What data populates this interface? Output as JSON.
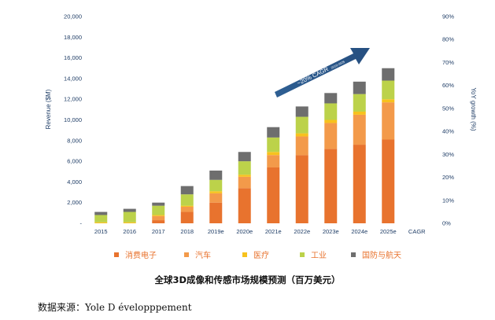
{
  "chart_data": {
    "type": "bar",
    "stacked": true,
    "categories": [
      "2015",
      "2016",
      "2017",
      "2018",
      "2019e",
      "2020e",
      "2021e",
      "2022e",
      "2023e",
      "2024e",
      "2025e",
      "CAGR"
    ],
    "series": [
      {
        "name": "消费电子",
        "color": "#e8732e",
        "values": [
          0,
          0,
          300,
          1100,
          2000,
          3400,
          5400,
          6600,
          7200,
          7600,
          8100,
          null
        ]
      },
      {
        "name": "汽车",
        "color": "#f39a4a",
        "values": [
          0,
          0,
          400,
          500,
          900,
          1100,
          1200,
          1800,
          2500,
          2900,
          3600,
          null
        ]
      },
      {
        "name": "医疗",
        "color": "#f7c21d",
        "values": [
          100,
          100,
          100,
          100,
          200,
          200,
          300,
          300,
          300,
          300,
          300,
          null
        ]
      },
      {
        "name": "工业",
        "color": "#bcd24a",
        "values": [
          700,
          1000,
          900,
          1100,
          1100,
          1300,
          1400,
          1600,
          1600,
          1700,
          1800,
          null
        ]
      },
      {
        "name": "国防与航天",
        "color": "#6e6e6e",
        "values": [
          300,
          300,
          300,
          800,
          900,
          900,
          1000,
          1000,
          1000,
          1200,
          1200,
          null
        ]
      }
    ],
    "ylabel": "Revenue ($M)",
    "ylim": [
      0,
      20000
    ],
    "yticks": [
      "-",
      "2,000",
      "4,000",
      "6,000",
      "8,000",
      "10,000",
      "12,000",
      "14,000",
      "16,000",
      "18,000",
      "20,000"
    ],
    "y2label": "YoY growth (%)",
    "y2lim": [
      0,
      90
    ],
    "y2ticks": [
      "0%",
      "10%",
      "20%",
      "30%",
      "40%",
      "50%",
      "60%",
      "70%",
      "80%",
      "90%"
    ],
    "annotation": {
      "text": "~20% CAGR",
      "subtext": "2019-2025"
    },
    "legend": "bottom",
    "grid": false
  },
  "caption": "全球3D成像和传感市场规模预测（百万美元）",
  "source": "数据来源：Yole D évelopppement"
}
